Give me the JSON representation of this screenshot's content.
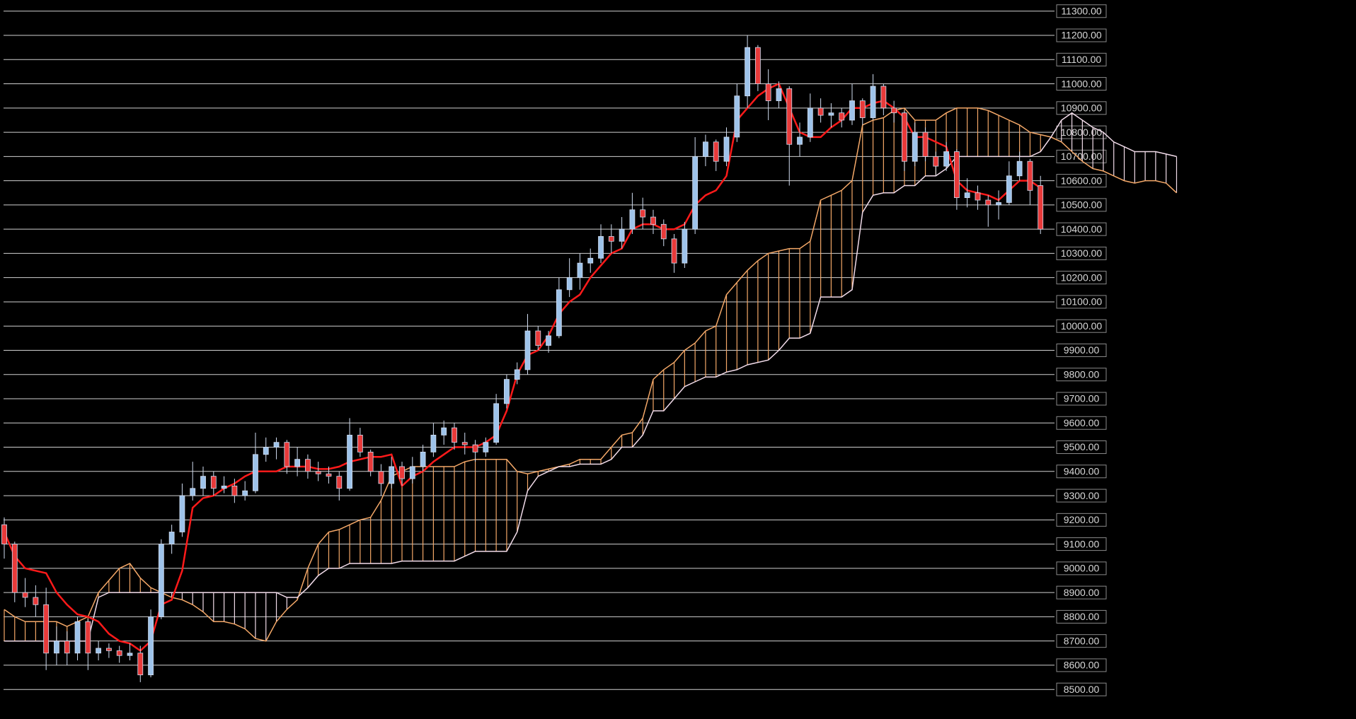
{
  "chart_data": {
    "type": "candlestick",
    "open": [
      9180,
      9100,
      8900,
      8880,
      8850,
      8650,
      8700,
      8650,
      8780,
      8650,
      8670,
      8660,
      8640,
      8650,
      8560,
      8800,
      9100,
      9150,
      9300,
      9330,
      9380,
      9330,
      9340,
      9300,
      9320,
      9470,
      9500,
      9520,
      9420,
      9450,
      9400,
      9390,
      9380,
      9330,
      9550,
      9480,
      9400,
      9350,
      9420,
      9370,
      9420,
      9480,
      9550,
      9580,
      9520,
      9510,
      9480,
      9520,
      9680,
      9780,
      9820,
      9980,
      9920,
      9960,
      10150,
      10200,
      10260,
      10280,
      10370,
      10350,
      10400,
      10480,
      10450,
      10420,
      10360,
      10260,
      10400,
      10700,
      10760,
      10680,
      10780,
      10950,
      11150,
      11000,
      10930,
      10980,
      10750,
      10780,
      10900,
      10870,
      10880,
      10850,
      10930,
      10860,
      10990,
      10900,
      10880,
      10680,
      10800,
      10700,
      10660,
      10720,
      10530,
      10550,
      10520,
      10500,
      10510,
      10620,
      10680,
      10580
    ],
    "high": [
      9210,
      9110,
      8960,
      8930,
      8920,
      8760,
      8740,
      8800,
      8790,
      8700,
      8690,
      8680,
      8690,
      8680,
      8830,
      9120,
      9180,
      9350,
      9440,
      9420,
      9400,
      9380,
      9370,
      9360,
      9560,
      9540,
      9540,
      9530,
      9500,
      9470,
      9440,
      9420,
      9400,
      9620,
      9580,
      9490,
      9430,
      9460,
      9440,
      9460,
      9510,
      9600,
      9610,
      9600,
      9560,
      9530,
      9540,
      9720,
      9800,
      9850,
      10050,
      10000,
      9980,
      10200,
      10280,
      10300,
      10320,
      10420,
      10420,
      10450,
      10550,
      10530,
      10480,
      10440,
      10380,
      10430,
      10780,
      10790,
      10770,
      10820,
      11000,
      11200,
      11160,
      11060,
      11010,
      10990,
      10840,
      10960,
      10940,
      10920,
      10900,
      11000,
      10940,
      11040,
      11000,
      10930,
      10890,
      10840,
      10820,
      10720,
      10760,
      10730,
      10610,
      10580,
      10540,
      10560,
      10680,
      10720,
      10690,
      10620
    ],
    "low": [
      9040,
      8860,
      8840,
      8800,
      8580,
      8600,
      8600,
      8620,
      8580,
      8620,
      8630,
      8610,
      8620,
      8530,
      8550,
      8790,
      9060,
      9130,
      9280,
      9300,
      9300,
      9310,
      9270,
      9280,
      9310,
      9440,
      9450,
      9390,
      9380,
      9370,
      9360,
      9350,
      9280,
      9320,
      9460,
      9380,
      9300,
      9330,
      9340,
      9350,
      9400,
      9460,
      9510,
      9490,
      9470,
      9440,
      9460,
      9510,
      9660,
      9760,
      9800,
      9900,
      9890,
      9950,
      10120,
      10150,
      10220,
      10260,
      10300,
      10320,
      10380,
      10400,
      10380,
      10330,
      10220,
      10240,
      10380,
      10660,
      10640,
      10660,
      10760,
      10900,
      10970,
      10850,
      10900,
      10580,
      10700,
      10760,
      10840,
      10820,
      10820,
      10830,
      10830,
      10850,
      10870,
      10840,
      10640,
      10660,
      10680,
      10620,
      10640,
      10480,
      10490,
      10480,
      10410,
      10440,
      10500,
      10600,
      10500,
      10380
    ],
    "close": [
      9100,
      8900,
      8880,
      8850,
      8650,
      8700,
      8650,
      8780,
      8650,
      8670,
      8660,
      8640,
      8650,
      8560,
      8800,
      9100,
      9150,
      9300,
      9330,
      9380,
      9330,
      9340,
      9300,
      9320,
      9470,
      9500,
      9520,
      9420,
      9450,
      9400,
      9390,
      9380,
      9330,
      9550,
      9480,
      9400,
      9350,
      9420,
      9370,
      9420,
      9480,
      9550,
      9580,
      9520,
      9510,
      9480,
      9520,
      9680,
      9780,
      9820,
      9980,
      9920,
      9960,
      10150,
      10200,
      10260,
      10280,
      10370,
      10350,
      10400,
      10480,
      10450,
      10420,
      10360,
      10260,
      10400,
      10700,
      10760,
      10680,
      10780,
      10950,
      11150,
      11000,
      10930,
      10980,
      10750,
      10780,
      10900,
      10870,
      10880,
      10850,
      10930,
      10860,
      10990,
      10900,
      10880,
      10680,
      10800,
      10700,
      10660,
      10720,
      10530,
      10550,
      10520,
      10500,
      10510,
      10620,
      10680,
      10560,
      10400
    ],
    "up_color": "#9ec3ea",
    "down_color": "#e83a3a",
    "wick_color": "#d0dcf0",
    "line": {
      "color": "#ff1a1a",
      "values": [
        9150,
        9050,
        9000,
        8990,
        8980,
        8900,
        8850,
        8810,
        8800,
        8780,
        8730,
        8700,
        8690,
        8660,
        8700,
        8850,
        8870,
        8990,
        9250,
        9290,
        9300,
        9330,
        9350,
        9380,
        9400,
        9400,
        9400,
        9420,
        9420,
        9420,
        9410,
        9410,
        9420,
        9440,
        9450,
        9460,
        9460,
        9470,
        9340,
        9380,
        9400,
        9440,
        9470,
        9500,
        9500,
        9500,
        9520,
        9550,
        9650,
        9800,
        9880,
        9900,
        9960,
        10050,
        10100,
        10130,
        10200,
        10250,
        10300,
        10320,
        10400,
        10420,
        10420,
        10400,
        10400,
        10420,
        10500,
        10540,
        10560,
        10620,
        10850,
        10900,
        10950,
        10980,
        11000,
        10900,
        10800,
        10780,
        10780,
        10820,
        10850,
        10900,
        10900,
        10920,
        10930,
        10900,
        10860,
        10780,
        10780,
        10760,
        10740,
        10600,
        10560,
        10550,
        10540,
        10520,
        10560,
        10600,
        10600,
        10570
      ]
    },
    "span_a": {
      "color": "#f4a868",
      "values": [
        8830,
        8800,
        8780,
        8780,
        8780,
        8780,
        8760,
        8780,
        8800,
        8900,
        8950,
        9000,
        9020,
        8960,
        8920,
        8900,
        8880,
        8870,
        8850,
        8820,
        8780,
        8780,
        8770,
        8750,
        8710,
        8700,
        8780,
        8830,
        8870,
        9000,
        9100,
        9150,
        9160,
        9180,
        9200,
        9210,
        9280,
        9380,
        9400,
        9420,
        9420,
        9420,
        9420,
        9420,
        9440,
        9450,
        9450,
        9450,
        9450,
        9400,
        9390,
        9400,
        9410,
        9420,
        9430,
        9450,
        9450,
        9450,
        9500,
        9550,
        9560,
        9620,
        9780,
        9820,
        9850,
        9900,
        9930,
        9980,
        10000,
        10130,
        10180,
        10230,
        10270,
        10300,
        10310,
        10320,
        10320,
        10350,
        10520,
        10540,
        10560,
        10600,
        10830,
        10850,
        10860,
        10890,
        10900,
        10850,
        10850,
        10850,
        10880,
        10900,
        10900,
        10900,
        10890,
        10870,
        10850,
        10830,
        10800,
        10790,
        10780,
        10760,
        10720,
        10680,
        10650,
        10640,
        10620,
        10600,
        10590,
        10600,
        10600,
        10590,
        10550
      ]
    },
    "span_b": {
      "color": "#f2dcea",
      "values": [
        8700,
        8700,
        8700,
        8700,
        8700,
        8700,
        8700,
        8700,
        8700,
        8880,
        8900,
        8900,
        8900,
        8900,
        8900,
        8900,
        8900,
        8900,
        8900,
        8900,
        8900,
        8900,
        8900,
        8900,
        8900,
        8900,
        8900,
        8880,
        8880,
        8920,
        8970,
        9000,
        9000,
        9020,
        9020,
        9020,
        9020,
        9020,
        9030,
        9030,
        9030,
        9030,
        9030,
        9030,
        9050,
        9070,
        9070,
        9070,
        9070,
        9150,
        9320,
        9380,
        9400,
        9420,
        9420,
        9430,
        9430,
        9430,
        9450,
        9500,
        9500,
        9550,
        9650,
        9650,
        9700,
        9750,
        9770,
        9790,
        9790,
        9810,
        9820,
        9840,
        9850,
        9860,
        9900,
        9950,
        9950,
        9970,
        10120,
        10120,
        10120,
        10150,
        10470,
        10540,
        10550,
        10550,
        10580,
        10580,
        10620,
        10620,
        10650,
        10700,
        10700,
        10700,
        10700,
        10700,
        10700,
        10700,
        10700,
        10720,
        10780,
        10850,
        10880,
        10850,
        10820,
        10800,
        10760,
        10740,
        10720,
        10720,
        10720,
        10710,
        10700
      ]
    },
    "ylim": [
      8378,
      11346
    ],
    "yticks": [
      {
        "value": 8500,
        "label": "8500.00"
      },
      {
        "value": 8600,
        "label": "8600.00"
      },
      {
        "value": 8700,
        "label": "8700.00"
      },
      {
        "value": 8800,
        "label": "8800.00"
      },
      {
        "value": 8900,
        "label": "8900.00"
      },
      {
        "value": 9000,
        "label": "9000.00"
      },
      {
        "value": 9100,
        "label": "9100.00"
      },
      {
        "value": 9200,
        "label": "9200.00"
      },
      {
        "value": 9300,
        "label": "9300.00"
      },
      {
        "value": 9400,
        "label": "9400.00"
      },
      {
        "value": 9500,
        "label": "9500.00"
      },
      {
        "value": 9600,
        "label": "9600.00"
      },
      {
        "value": 9700,
        "label": "9700.00"
      },
      {
        "value": 9800,
        "label": "9800.00"
      },
      {
        "value": 9900,
        "label": "9900.00"
      },
      {
        "value": 10000,
        "label": "10000.00"
      },
      {
        "value": 10100,
        "label": "10100.00"
      },
      {
        "value": 10200,
        "label": "10200.00"
      },
      {
        "value": 10300,
        "label": "10300.00"
      },
      {
        "value": 10400,
        "label": "10400.00"
      },
      {
        "value": 10500,
        "label": "10500.00"
      },
      {
        "value": 10600,
        "label": "10600.00"
      },
      {
        "value": 10700,
        "label": "10700.00"
      },
      {
        "value": 10800,
        "label": "10800.00"
      },
      {
        "value": 10900,
        "label": "10900.00"
      },
      {
        "value": 11000,
        "label": "11000.00"
      },
      {
        "value": 11100,
        "label": "11100.00"
      },
      {
        "value": 11200,
        "label": "11200.00"
      },
      {
        "value": 11300,
        "label": "11300.00"
      }
    ],
    "grid": true
  }
}
